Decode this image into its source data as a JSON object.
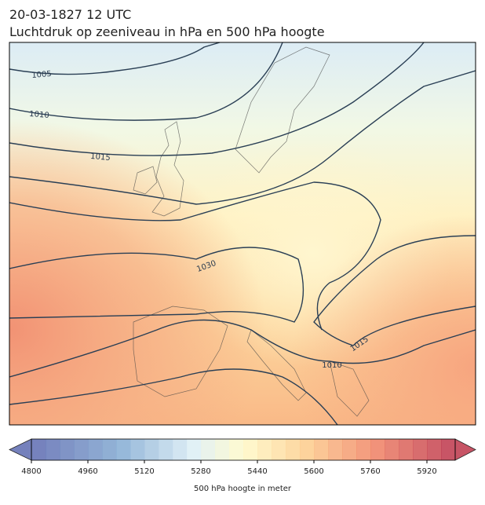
{
  "header": {
    "date": "20-03-1827 12 UTC",
    "title": "Luchtdruk op zeeniveau in hPa en 500 hPa hoogte"
  },
  "contour_labels": [
    "1005",
    "1010",
    "1015",
    "1030",
    "1015",
    "1010"
  ],
  "colorbar": {
    "label": "500 hPa hoogte in meter",
    "lim": [
      4800,
      6000
    ],
    "ticks": [
      4800,
      4960,
      5120,
      5280,
      5440,
      5600,
      5760,
      5920
    ]
  }
}
